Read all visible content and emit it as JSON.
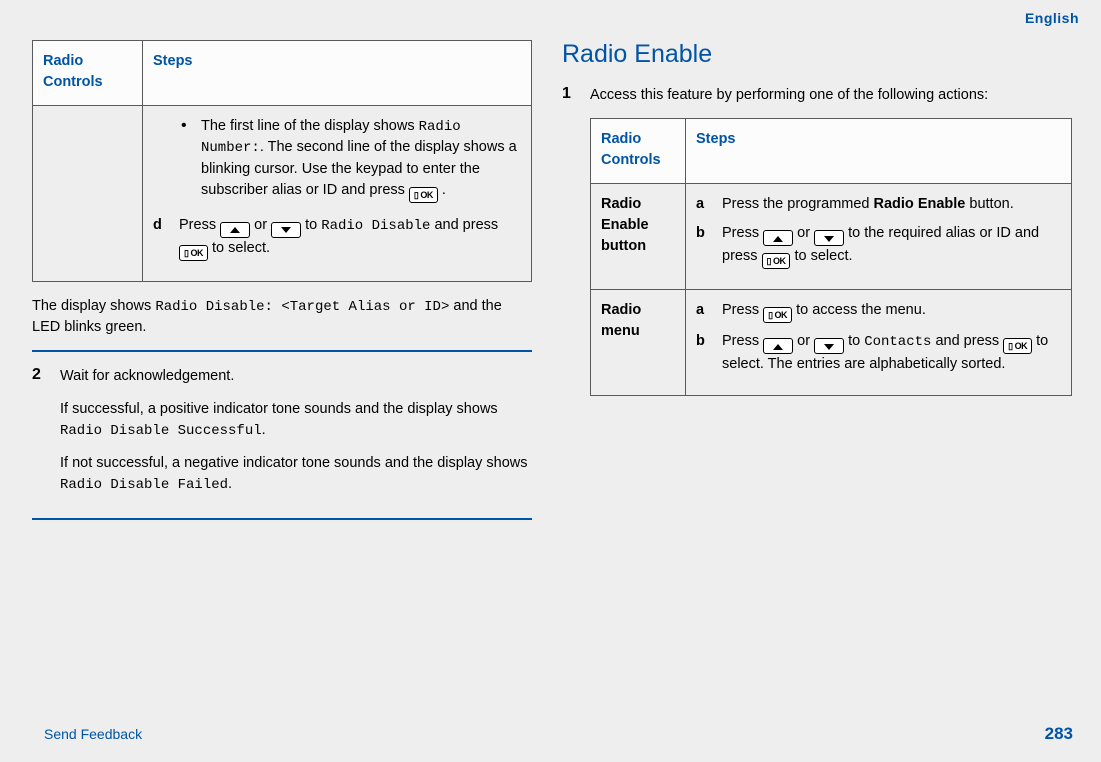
{
  "colors": {
    "accent": "#0054a6",
    "page_bg": "#eeeeee",
    "border": "#5a5a5a",
    "icon_border": "#000000",
    "text": "#000000"
  },
  "header": {
    "language": "English"
  },
  "left": {
    "table": {
      "col1": "Radio Controls",
      "col2": "Steps",
      "bullet_pre": "The first line of the display shows ",
      "bullet_code": "Radio Number:",
      "bullet_post1": ". The second line of the display shows a blinking cursor. Use the keypad to enter the subscriber alias or ID and press ",
      "bullet_post2": " .",
      "d_label": "d",
      "d_pre": "Press ",
      "d_mid1": " or ",
      "d_mid2": " to ",
      "d_code1": "Radio Disable",
      "d_mid3": " and press ",
      "d_post": " to select."
    },
    "below_table_pre": "The display shows ",
    "below_table_code": "Radio Disable: <Target Alias or ID>",
    "below_table_post": " and the LED blinks green.",
    "step2_num": "2",
    "step2_text": "Wait for acknowledgement.",
    "p_success_pre": "If successful, a positive indicator tone sounds and the display shows ",
    "p_success_code": "Radio Disable Successful",
    "p_success_post": ".",
    "p_fail_pre": "If not successful, a negative indicator tone sounds and the display shows ",
    "p_fail_code": "Radio Disable Failed",
    "p_fail_post": "."
  },
  "right": {
    "title": "Radio Enable",
    "step1_num": "1",
    "step1_text": "Access this feature by performing one of the following actions:",
    "table": {
      "col1": "Radio Controls",
      "col2": "Steps",
      "row1_label": "Radio Enable button",
      "r1a_label": "a",
      "r1a_pre": "Press the programmed ",
      "r1a_bold": "Radio Enable",
      "r1a_post": " button.",
      "r1b_label": "b",
      "r1b_pre": "Press ",
      "r1b_mid1": " or ",
      "r1b_mid2": " to the required alias or ID and press ",
      "r1b_post": " to select.",
      "row2_label": "Radio menu",
      "r2a_label": "a",
      "r2a_pre": "Press ",
      "r2a_post": " to access the menu.",
      "r2b_label": "b",
      "r2b_pre": "Press ",
      "r2b_mid1": " or ",
      "r2b_mid2": " to ",
      "r2b_code": "Contacts",
      "r2b_mid3": " and press ",
      "r2b_post": " to select. The entries are alphabetically sorted."
    }
  },
  "footer": {
    "feedback": "Send Feedback",
    "page": "283"
  },
  "icons": {
    "ok_label": "▯ OK"
  }
}
